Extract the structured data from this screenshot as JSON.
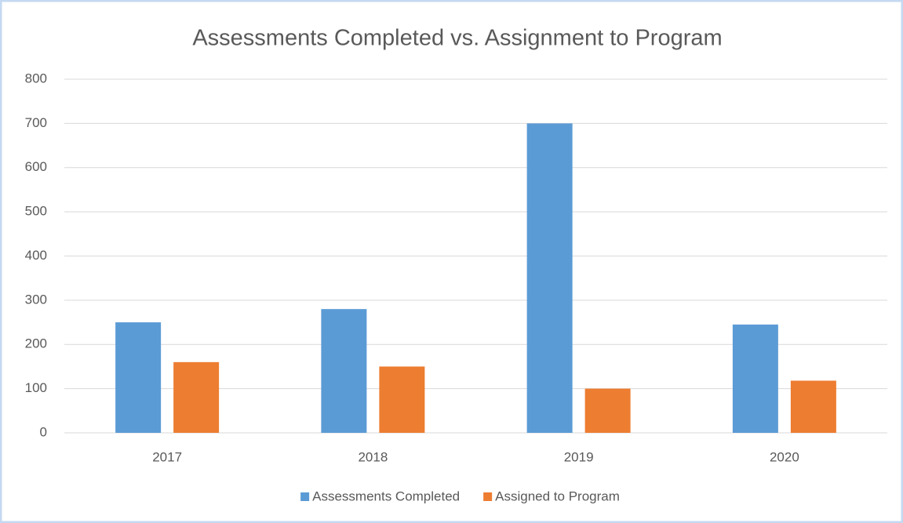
{
  "chart_data": {
    "type": "bar",
    "title": "Assessments Completed vs. Assignment to Program",
    "categories": [
      "2017",
      "2018",
      "2019",
      "2020"
    ],
    "series": [
      {
        "name": "Assessments Completed",
        "color": "#5b9bd5",
        "values": [
          250,
          280,
          700,
          245
        ]
      },
      {
        "name": "Assigned to Program",
        "color": "#ed7d31",
        "values": [
          160,
          150,
          100,
          118
        ]
      }
    ],
    "ylim": [
      0,
      800
    ],
    "yticks": [
      0,
      100,
      200,
      300,
      400,
      500,
      600,
      700,
      800
    ],
    "grid": true,
    "legend": "bottom"
  }
}
